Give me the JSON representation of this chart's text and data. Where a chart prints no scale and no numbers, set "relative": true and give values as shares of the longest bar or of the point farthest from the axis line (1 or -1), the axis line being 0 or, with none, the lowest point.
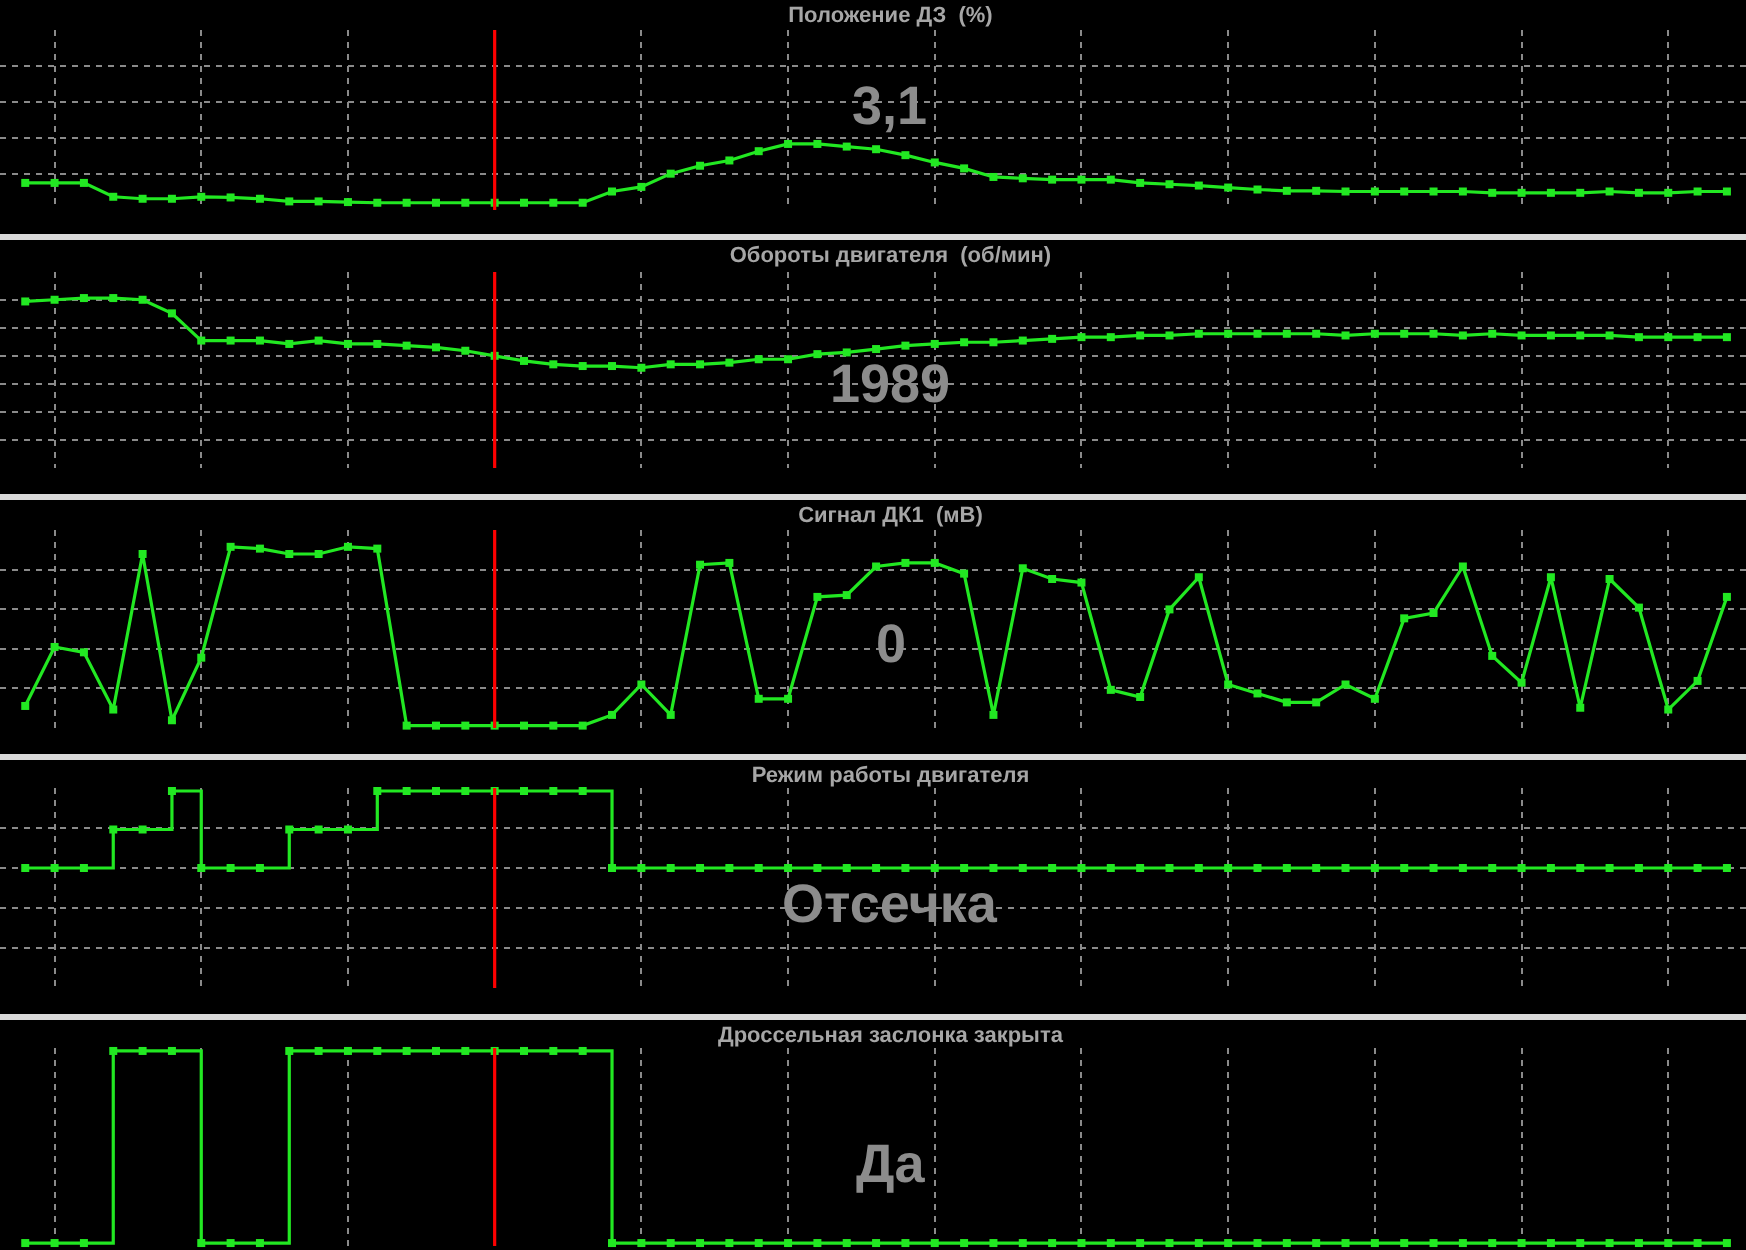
{
  "chart_data": [
    {
      "type": "line",
      "title": "Положение ДЗ  (%)",
      "relative": true,
      "grid": true,
      "marker": "square",
      "line_style": "solid",
      "color": "#22e822",
      "categories": [
        null,
        null,
        null,
        null,
        null,
        null,
        null,
        null,
        null,
        null,
        null,
        null,
        null,
        null,
        null,
        null,
        null,
        null,
        null,
        null,
        null,
        null,
        null,
        null,
        null,
        null,
        null,
        null,
        null,
        null,
        null,
        null,
        null,
        null,
        null,
        null,
        null,
        null,
        null,
        null,
        null,
        null,
        null,
        null,
        null,
        null,
        null,
        null,
        null,
        null,
        null,
        null,
        null,
        null,
        null,
        null,
        null,
        null,
        null
      ],
      "values": [
        0.41,
        0.41,
        0.41,
        0.2,
        0.17,
        0.17,
        0.2,
        0.19,
        0.17,
        0.13,
        0.13,
        0.12,
        0.11,
        0.11,
        0.11,
        0.11,
        0.11,
        0.11,
        0.11,
        0.11,
        0.28,
        0.35,
        0.55,
        0.67,
        0.75,
        0.89,
        1,
        1,
        0.96,
        0.92,
        0.83,
        0.72,
        0.63,
        0.5,
        0.48,
        0.46,
        0.46,
        0.46,
        0.41,
        0.39,
        0.37,
        0.34,
        0.31,
        0.29,
        0.29,
        0.28,
        0.28,
        0.28,
        0.28,
        0.28,
        0.26,
        0.26,
        0.26,
        0.26,
        0.28,
        0.26,
        0.26,
        0.28,
        0.28
      ],
      "annotations": [
        "3,1"
      ]
    },
    {
      "type": "line",
      "title": "Обороты двигателя  (об/мин)",
      "relative": true,
      "grid": true,
      "marker": "square",
      "line_style": "solid",
      "color": "#22e822",
      "categories": [
        null,
        null,
        null,
        null,
        null,
        null,
        null,
        null,
        null,
        null,
        null,
        null,
        null,
        null,
        null,
        null,
        null,
        null,
        null,
        null,
        null,
        null,
        null,
        null,
        null,
        null,
        null,
        null,
        null,
        null,
        null,
        null,
        null,
        null,
        null,
        null,
        null,
        null,
        null,
        null,
        null,
        null,
        null,
        null,
        null,
        null,
        null,
        null,
        null,
        null,
        null,
        null,
        null,
        null,
        null,
        null,
        null,
        null,
        null
      ],
      "values": [
        0.98,
        0.99,
        1,
        1,
        0.99,
        0.91,
        0.75,
        0.75,
        0.75,
        0.73,
        0.75,
        0.73,
        0.73,
        0.72,
        0.71,
        0.69,
        0.66,
        0.63,
        0.61,
        0.6,
        0.6,
        0.59,
        0.61,
        0.61,
        0.62,
        0.64,
        0.64,
        0.67,
        0.68,
        0.7,
        0.72,
        0.73,
        0.74,
        0.74,
        0.75,
        0.76,
        0.77,
        0.77,
        0.78,
        0.78,
        0.79,
        0.79,
        0.79,
        0.79,
        0.79,
        0.78,
        0.79,
        0.79,
        0.79,
        0.78,
        0.79,
        0.78,
        0.78,
        0.78,
        0.78,
        0.77,
        0.77,
        0.77,
        0.77
      ],
      "annotations": [
        "1989"
      ]
    },
    {
      "type": "line",
      "title": "Сигнал ДК1  (мВ)",
      "relative": true,
      "grid": true,
      "marker": "square",
      "line_style": "solid",
      "color": "#22e822",
      "categories": [
        null,
        null,
        null,
        null,
        null,
        null,
        null,
        null,
        null,
        null,
        null,
        null,
        null,
        null,
        null,
        null,
        null,
        null,
        null,
        null,
        null,
        null,
        null,
        null,
        null,
        null,
        null,
        null,
        null,
        null,
        null,
        null,
        null,
        null,
        null,
        null,
        null,
        null,
        null,
        null,
        null,
        null,
        null,
        null,
        null,
        null,
        null,
        null,
        null,
        null,
        null,
        null,
        null,
        null,
        null,
        null,
        null,
        null,
        null
      ],
      "values": [
        0.11,
        0.44,
        0.41,
        0.09,
        0.96,
        0.03,
        0.38,
        1,
        0.99,
        0.96,
        0.96,
        1,
        0.99,
        0,
        0,
        0,
        0,
        0,
        0,
        0,
        0.06,
        0.23,
        0.06,
        0.9,
        0.91,
        0.15,
        0.15,
        0.72,
        0.73,
        0.89,
        0.91,
        0.91,
        0.85,
        0.06,
        0.88,
        0.82,
        0.8,
        0.2,
        0.16,
        0.65,
        0.83,
        0.23,
        0.18,
        0.13,
        0.13,
        0.23,
        0.15,
        0.6,
        0.63,
        0.89,
        0.39,
        0.24,
        0.83,
        0.1,
        0.82,
        0.66,
        0.09,
        0.25,
        0.72
      ],
      "annotations": [
        "0"
      ]
    },
    {
      "type": "step",
      "title": "Режим работы двигателя",
      "relative": true,
      "grid": true,
      "marker": "square",
      "line_style": "solid",
      "color": "#22e822",
      "categories": [
        null,
        null,
        null,
        null,
        null,
        null,
        null,
        null,
        null,
        null,
        null,
        null,
        null,
        null,
        null,
        null,
        null,
        null,
        null,
        null,
        null,
        null,
        null,
        null,
        null,
        null,
        null,
        null,
        null,
        null,
        null,
        null,
        null,
        null,
        null,
        null,
        null,
        null,
        null,
        null,
        null,
        null,
        null,
        null,
        null,
        null,
        null,
        null,
        null,
        null,
        null,
        null,
        null,
        null,
        null,
        null,
        null,
        null,
        null
      ],
      "values": [
        0,
        0,
        0,
        0.5,
        0.5,
        1,
        0,
        0,
        0,
        0.5,
        0.5,
        0.5,
        1,
        1,
        1,
        1,
        1,
        1,
        1,
        1,
        0,
        0,
        0,
        0,
        0,
        0,
        0,
        0,
        0,
        0,
        0,
        0,
        0,
        0,
        0,
        0,
        0,
        0,
        0,
        0,
        0,
        0,
        0,
        0,
        0,
        0,
        0,
        0,
        0,
        0,
        0,
        0,
        0,
        0,
        0,
        0,
        0,
        0,
        0
      ],
      "annotations": [
        "Отсечка"
      ]
    },
    {
      "type": "step",
      "title": "Дроссельная заслонка закрыта",
      "relative": true,
      "grid": true,
      "marker": "square",
      "line_style": "solid",
      "color": "#22e822",
      "categories": [
        null,
        null,
        null,
        null,
        null,
        null,
        null,
        null,
        null,
        null,
        null,
        null,
        null,
        null,
        null,
        null,
        null,
        null,
        null,
        null,
        null,
        null,
        null,
        null,
        null,
        null,
        null,
        null,
        null,
        null,
        null,
        null,
        null,
        null,
        null,
        null,
        null,
        null,
        null,
        null,
        null,
        null,
        null,
        null,
        null,
        null,
        null,
        null,
        null,
        null,
        null,
        null,
        null,
        null,
        null,
        null,
        null,
        null,
        null
      ],
      "values": [
        0,
        0,
        0,
        1,
        1,
        1,
        0,
        0,
        0,
        1,
        1,
        1,
        1,
        1,
        1,
        1,
        1,
        1,
        1,
        1,
        0,
        0,
        0,
        0,
        0,
        0,
        0,
        0,
        0,
        0,
        0,
        0,
        0,
        0,
        0,
        0,
        0,
        0,
        0,
        0,
        0,
        0,
        0,
        0,
        0,
        0,
        0,
        0,
        0,
        0,
        0,
        0,
        0,
        0,
        0,
        0,
        0,
        0,
        0
      ],
      "annotations": [
        "Да"
      ]
    }
  ]
}
